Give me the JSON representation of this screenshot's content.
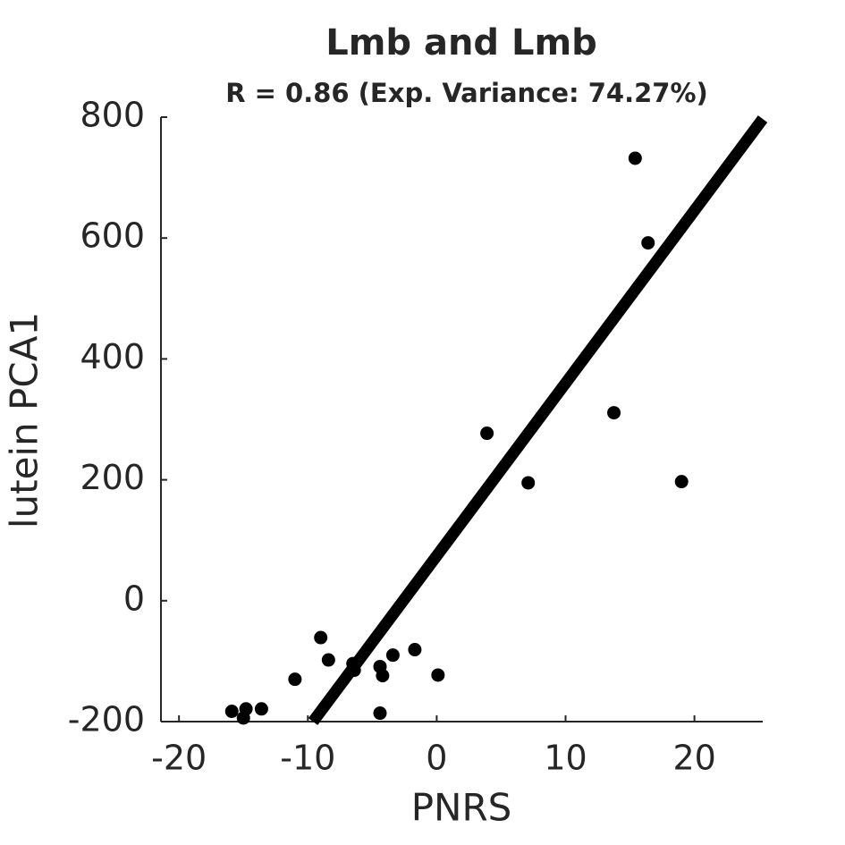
{
  "chart_data": {
    "type": "scatter",
    "title": "Lmb and Lmb",
    "subtitle": "R = 0.86 (Exp. Variance: 74.27%)",
    "x_label": "PNRS",
    "y_label": "lutein PCA1",
    "x": [
      15.4,
      16.4,
      13.75,
      19.0,
      3.9,
      7.1,
      -9.0,
      -8.4,
      -11.0,
      -6.5,
      -6.4,
      -4.4,
      -4.2,
      -3.4,
      -1.7,
      0.1,
      -4.4,
      -15.9,
      -14.8,
      -15.0,
      -13.6
    ],
    "values": [
      732,
      592,
      311,
      197,
      277,
      195,
      -61,
      -98,
      -130,
      -104,
      -115,
      -109,
      -124,
      -90,
      -81,
      -123,
      -186,
      -183,
      -179,
      -194,
      -179
    ],
    "color": "#000000",
    "fit_line": {
      "x": [
        -9.6,
        25.3
      ],
      "y": [
        -200,
        797
      ],
      "color": "#000000"
    },
    "xlim": [
      -21.4,
      25.3
    ],
    "ylim": [
      -200,
      800
    ],
    "xticks": [
      -20,
      -10,
      0,
      10,
      20
    ],
    "yticks": [
      -200,
      0,
      200,
      400,
      600,
      800
    ]
  }
}
